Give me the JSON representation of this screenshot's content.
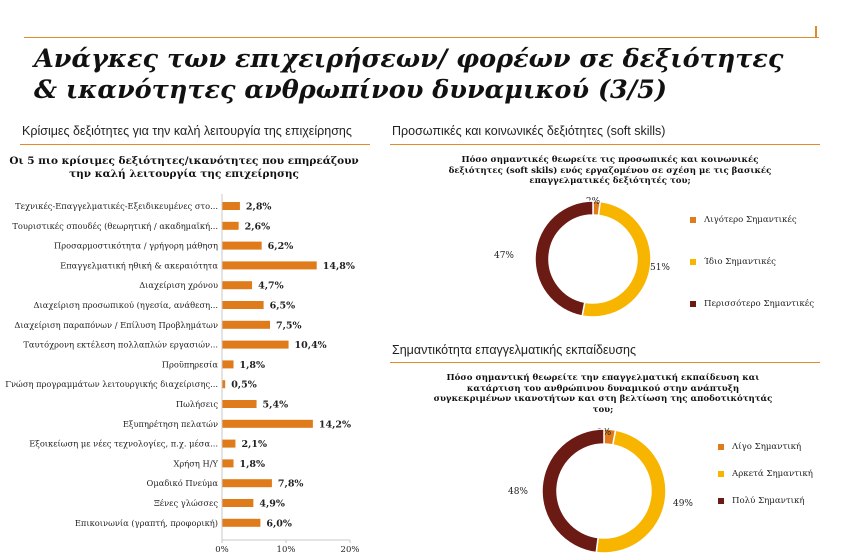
{
  "title": "Ανάγκες των επιχειρήσεων/ φορέων σε δεξιότητες & ικανότητες ανθρωπίνου δυναμικού (3/5)",
  "left_section": {
    "heading": "Κρίσιμες δεξιότητες για την καλή λειτουργία της επιχείρησης",
    "subtitle": "Οι 5 πιο κρίσιμες δεξιότητες/ικανότητες που επηρεάζουν την καλή λειτουργία της επιχείρησης"
  },
  "right_top": {
    "heading": "Προσωπικές και κοινωνικές δεξιότητες (soft skills)",
    "question": "Πόσο σημαντικές θεωρείτε τις προσωπικές και κοινωνικές δεξιότητες (soft skils) ενός εργαζομένου σε σχέση με τις βασικές επαγγελματικές δεξιότητές του;"
  },
  "right_bottom": {
    "heading": "Σημαντικότητα επαγγελματικής εκπαίδευσης",
    "question": "Πόσο σημαντική θεωρείτε την επαγγελματική εκπαίδευση και κατάρτιση του ανθρώπινου δυναμικού στην ανάπτυξη συγκεκριμένων ικανοτήτων και στη βελτίωση της αποδοτικότητάς του;"
  },
  "colors": {
    "accent_line": "#e08a2a",
    "bar": "#e07b1b",
    "dark_red": "#6b1a14",
    "yellow": "#f7b500",
    "orange": "#e07b1b"
  },
  "chart_data": [
    {
      "type": "bar",
      "orientation": "horizontal",
      "categories": [
        "Τεχνικές-Επαγγελματικές-Εξειδικευμένες στο...",
        "Τουριστικές σπουδές (θεωρητική / ακαδημαϊκή...",
        "Προσαρμοστικότητα / γρήγορη μάθηση",
        "Επαγγελματική ηθική & ακεραιότητα",
        "Διαχείριση χρόνου",
        "Διαχείριση προσωπικού (ηγεσία, ανάθεση...",
        "Διαχείριση παραπόνων / Επίλυση Προβλημάτων",
        "Ταυτόχρονη εκτέλεση πολλαπλών εργασιών...",
        "Προϋπηρεσία",
        "Γνώση προγραμμάτων λειτουργικής διαχείρισης...",
        "Πωλήσεις",
        "Εξυπηρέτηση πελατών",
        "Εξοικείωση με νέες τεχνολογίες, π.χ. μέσα...",
        "Χρήση Η/Υ",
        "Ομαδικό Πνεύμα",
        "Ξένες γλώσσες",
        "Επικοινωνία (γραπτή, προφορική)"
      ],
      "values": [
        2.8,
        2.6,
        6.2,
        14.8,
        4.7,
        6.5,
        7.5,
        10.4,
        1.8,
        0.5,
        5.4,
        14.2,
        2.1,
        1.8,
        7.8,
        4.9,
        6.0
      ],
      "value_labels": [
        "2,8%",
        "2,6%",
        "6,2%",
        "14,8%",
        "4,7%",
        "6,5%",
        "7,5%",
        "10,4%",
        "1,8%",
        "0,5%",
        "5,4%",
        "14,2%",
        "2,1%",
        "1,8%",
        "7,8%",
        "4,9%",
        "6,0%"
      ],
      "xlim": [
        0,
        20
      ],
      "x_ticks": [
        "0%",
        "10%",
        "20%"
      ],
      "grid": false
    },
    {
      "type": "pie",
      "variant": "donut",
      "categories": [
        "Λιγότερο Σημαντικές",
        "Ίδιο Σημαντικές",
        "Περισσότερο Σημαντικές"
      ],
      "values": [
        2,
        51,
        47
      ],
      "value_labels": [
        "2%",
        "51%",
        "47%"
      ],
      "colors": [
        "#e07b1b",
        "#f7b500",
        "#6b1a14"
      ],
      "legend": "right"
    },
    {
      "type": "pie",
      "variant": "donut",
      "categories": [
        "Λίγο Σημαντική",
        "Αρκετά Σημαντική",
        "Πολύ Σημαντική"
      ],
      "values": [
        3,
        49,
        48
      ],
      "value_labels": [
        "3%",
        "49%",
        "48%"
      ],
      "colors": [
        "#e07b1b",
        "#f7b500",
        "#6b1a14"
      ],
      "legend": "right"
    }
  ]
}
